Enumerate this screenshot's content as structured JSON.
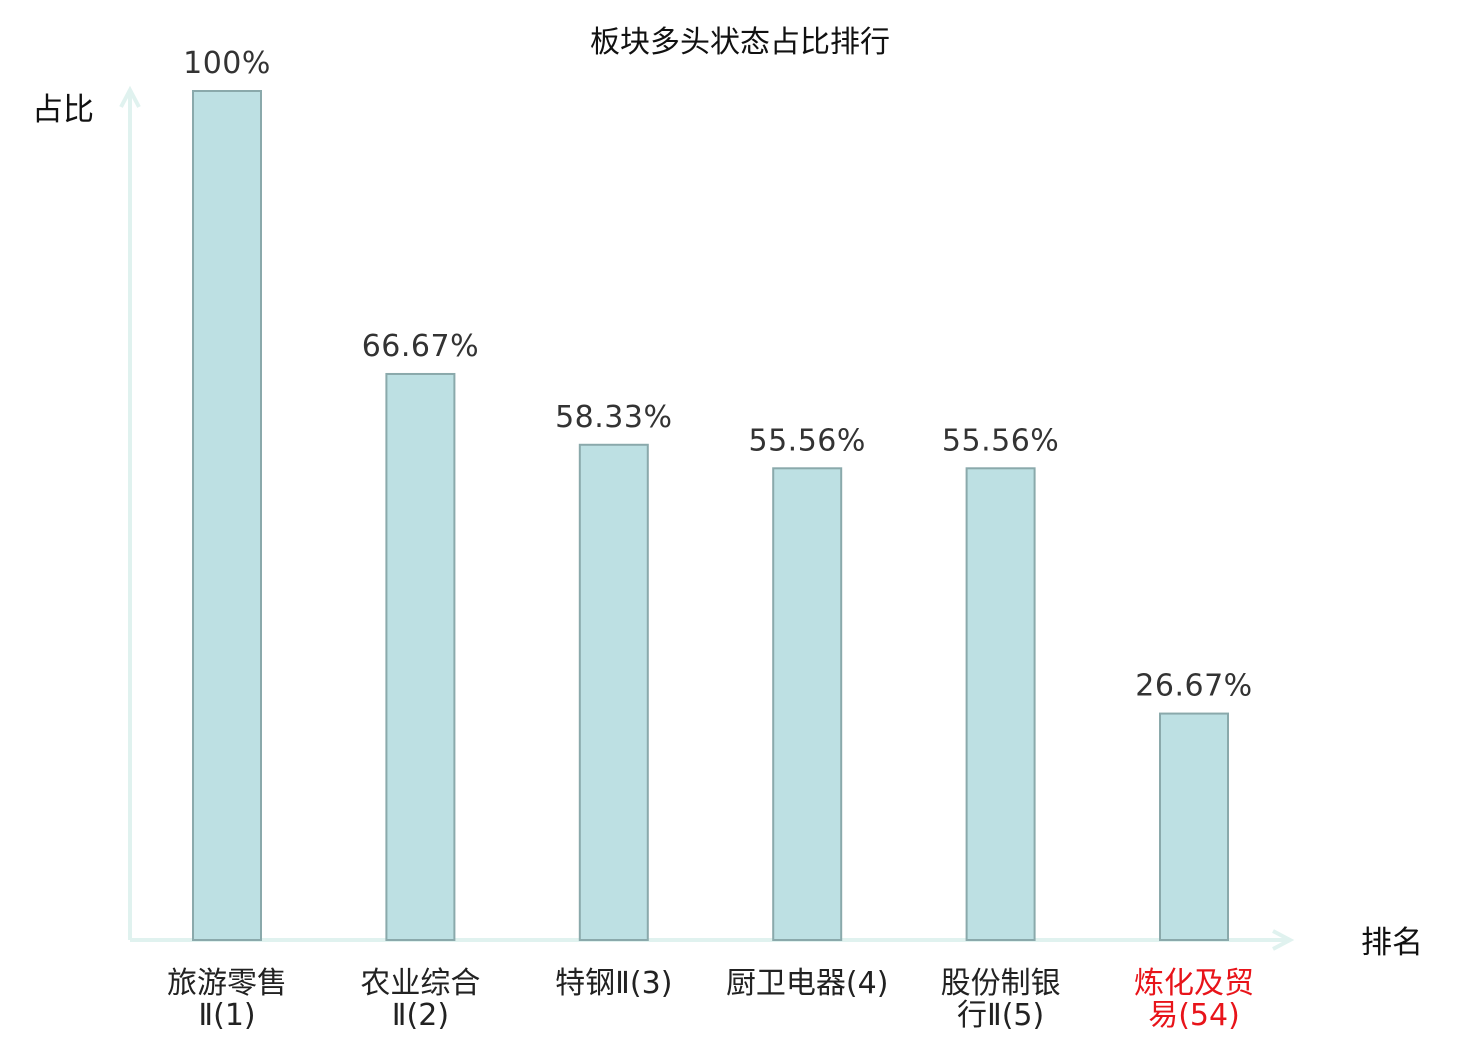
{
  "chart_data": {
    "type": "bar",
    "title": "板块多头状态占比排行",
    "ylabel": "占比",
    "xlabel": "排名",
    "ylim": [
      0,
      100
    ],
    "grid": false,
    "colors": {
      "bar_fill": "#bde0e3",
      "bar_stroke": "#8aa9ab",
      "axis": "#e0f2ef",
      "label_default": "#222222",
      "label_highlight": "#e8141a"
    },
    "categories": [
      {
        "name_lines": [
          "旅游零售",
          "Ⅱ(1)"
        ],
        "highlight": false
      },
      {
        "name_lines": [
          "农业综合",
          "Ⅱ(2)"
        ],
        "highlight": false
      },
      {
        "name_lines": [
          "特钢Ⅱ(3)"
        ],
        "highlight": false
      },
      {
        "name_lines": [
          "厨卫电器(4)"
        ],
        "highlight": false
      },
      {
        "name_lines": [
          "股份制银",
          "行Ⅱ(5)"
        ],
        "highlight": false
      },
      {
        "name_lines": [
          "炼化及贸",
          "易(54)"
        ],
        "highlight": true
      }
    ],
    "values": [
      100,
      66.67,
      58.33,
      55.56,
      55.56,
      26.67
    ],
    "value_labels": [
      "100%",
      "66.67%",
      "58.33%",
      "55.56%",
      "55.56%",
      "26.67%"
    ]
  }
}
